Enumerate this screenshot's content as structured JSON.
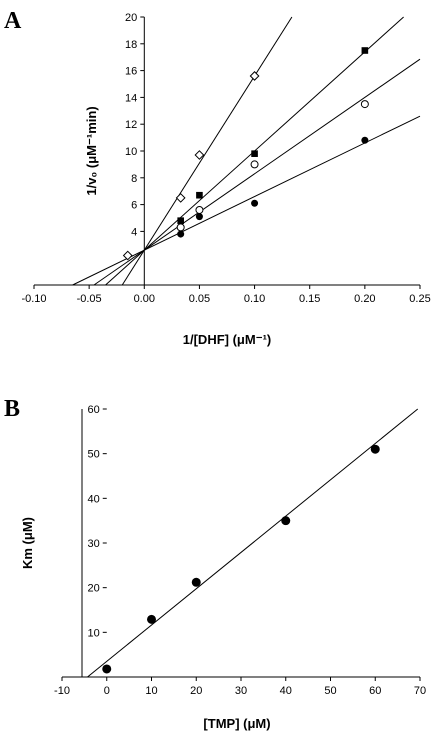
{
  "chart_data": [
    {
      "type": "scatter",
      "panel_label": "A",
      "xlabel": "1/[DHF] (μM⁻¹)",
      "ylabel": "1/v₀ (μM⁻¹min)",
      "xlim": [
        -0.1,
        0.25
      ],
      "ylim": [
        0,
        20
      ],
      "xticks": [
        "-0.10",
        "-0.05",
        "0.00",
        "0.05",
        "0.10",
        "0.15",
        "0.20",
        "0.25"
      ],
      "yticks": [
        "4",
        "6",
        "8",
        "10",
        "12",
        "14",
        "16",
        "18",
        "20"
      ],
      "grid": false,
      "series": [
        {
          "marker": "open-diamond",
          "points": [
            [
              -0.015,
              2.2
            ],
            [
              0.033,
              6.5
            ],
            [
              0.05,
              9.7
            ],
            [
              0.1,
              15.6
            ]
          ],
          "fit": {
            "slope": 130.0,
            "intercept": 2.6
          }
        },
        {
          "marker": "filled-square",
          "points": [
            [
              0.033,
              4.8
            ],
            [
              0.05,
              6.7
            ],
            [
              0.1,
              9.8
            ],
            [
              0.2,
              17.5
            ]
          ],
          "fit": {
            "slope": 74.0,
            "intercept": 2.6
          }
        },
        {
          "marker": "open-circle",
          "points": [
            [
              0.033,
              4.3
            ],
            [
              0.05,
              5.6
            ],
            [
              0.1,
              9.0
            ],
            [
              0.2,
              13.5
            ]
          ],
          "fit": {
            "slope": 57.0,
            "intercept": 2.6
          }
        },
        {
          "marker": "filled-circle",
          "points": [
            [
              0.033,
              3.8
            ],
            [
              0.05,
              5.1
            ],
            [
              0.1,
              6.1
            ],
            [
              0.2,
              10.8
            ]
          ],
          "fit": {
            "slope": 40.0,
            "intercept": 2.6
          }
        }
      ]
    },
    {
      "type": "scatter",
      "panel_label": "B",
      "xlabel": "[TMP] (μM)",
      "ylabel": "Km (μM)",
      "xlim": [
        -10,
        70
      ],
      "ylim": [
        0,
        60
      ],
      "xticks": [
        "-10",
        "0",
        "10",
        "20",
        "30",
        "40",
        "50",
        "60",
        "70"
      ],
      "yticks": [
        "10",
        "20",
        "30",
        "40",
        "50",
        "60"
      ],
      "grid": false,
      "series": [
        {
          "marker": "filled-circle",
          "points": [
            [
              0,
              1.8
            ],
            [
              10,
              12.9
            ],
            [
              20,
              21.2
            ],
            [
              40,
              35.0
            ],
            [
              60,
              51.0
            ]
          ],
          "fit": {
            "slope": 0.813,
            "intercept": 3.5
          }
        }
      ]
    }
  ]
}
